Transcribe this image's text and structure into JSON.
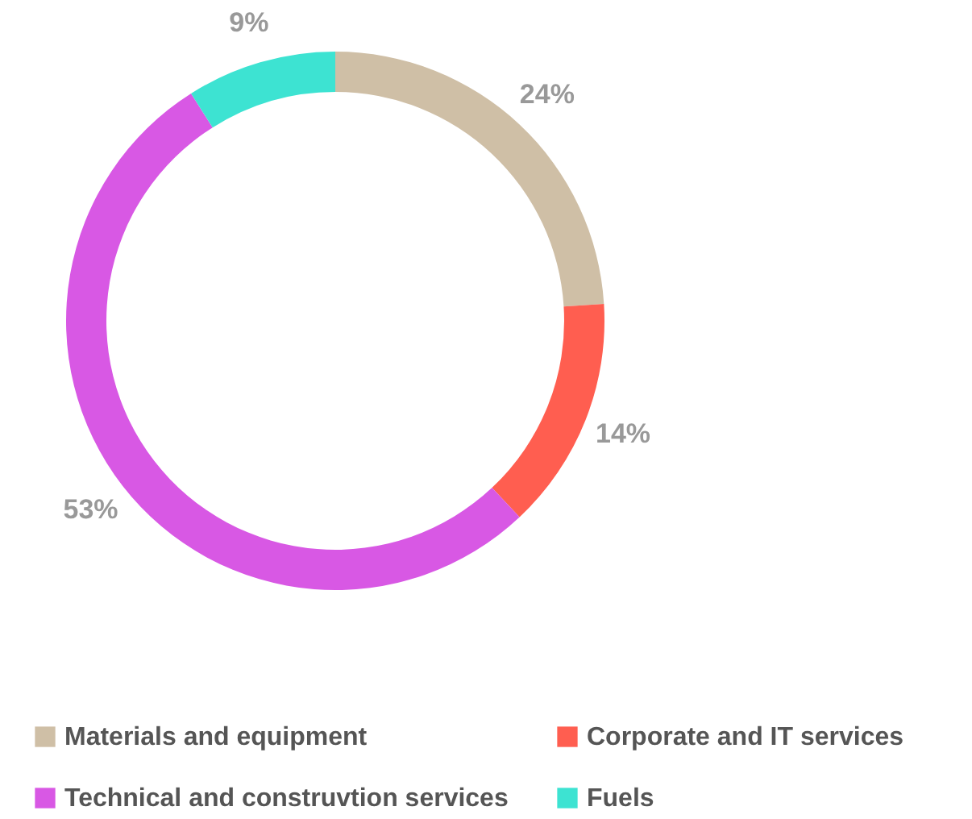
{
  "chart_data": {
    "type": "donut",
    "categories": [
      "Materials and equipment",
      "Corporate and IT services",
      "Technical and construvtion services",
      "Fuels"
    ],
    "values": [
      24,
      14,
      53,
      9
    ],
    "value_labels": [
      "24%",
      "14%",
      "53%",
      "9%"
    ],
    "colors": [
      "#cfbfa6",
      "#ff5e50",
      "#d858e4",
      "#3de3d2"
    ],
    "legend": "bottom"
  }
}
